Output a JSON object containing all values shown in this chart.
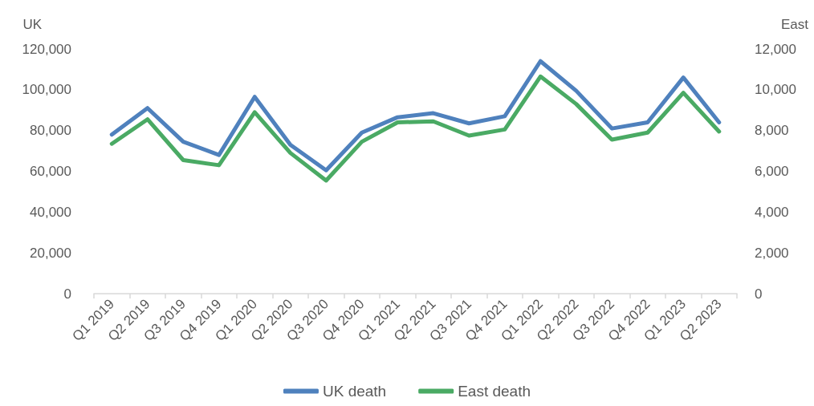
{
  "chart_data": {
    "type": "line",
    "ylabel": "UK",
    "y2label": "East",
    "categories": [
      "Q1 2019",
      "Q2 2019",
      "Q3 2019",
      "Q4 2019",
      "Q1 2020",
      "Q2 2020",
      "Q3 2020",
      "Q4 2020",
      "Q1 2021",
      "Q2 2021",
      "Q3 2021",
      "Q4 2021",
      "Q1 2022",
      "Q2 2022",
      "Q3 2022",
      "Q4 2022",
      "Q1 2023",
      "Q2 2023"
    ],
    "series": [
      {
        "name": "UK death",
        "color": "#4f81bd",
        "values": [
          78000,
          91000,
          74500,
          68000,
          96500,
          73000,
          60500,
          79000,
          86500,
          88500,
          83500,
          87000,
          114000,
          99500,
          81000,
          84000,
          106000,
          84000
        ]
      },
      {
        "name": "East death",
        "color": "#4aaa64",
        "axis": "y2",
        "values": [
          7350,
          8550,
          6550,
          6300,
          8900,
          6900,
          5550,
          7450,
          8400,
          8450,
          7750,
          8050,
          10650,
          9300,
          7550,
          7900,
          9850,
          7950
        ]
      }
    ],
    "ylim": [
      0,
      120000
    ],
    "yticks": [
      0,
      {
        "value": 20000,
        "label": "20,000"
      },
      {
        "value": 40000,
        "label": "40,000"
      },
      {
        "value": 60000,
        "label": "60,000"
      },
      {
        "value": 80000,
        "label": "80,000"
      },
      {
        "value": 100000,
        "label": "100,000"
      },
      {
        "value": 120000,
        "label": "120,000"
      }
    ],
    "y2lim": [
      0,
      12000
    ],
    "y2ticks": [
      0,
      {
        "value": 2000,
        "label": "2,000"
      },
      {
        "value": 4000,
        "label": "4,000"
      },
      {
        "value": 6000,
        "label": "6,000"
      },
      {
        "value": 8000,
        "label": "8,000"
      },
      {
        "value": 10000,
        "label": "10,000"
      },
      {
        "value": 12000,
        "label": "12,000"
      }
    ],
    "grid": false,
    "legend": "bottom",
    "marker": "none",
    "line_style": "solid"
  }
}
